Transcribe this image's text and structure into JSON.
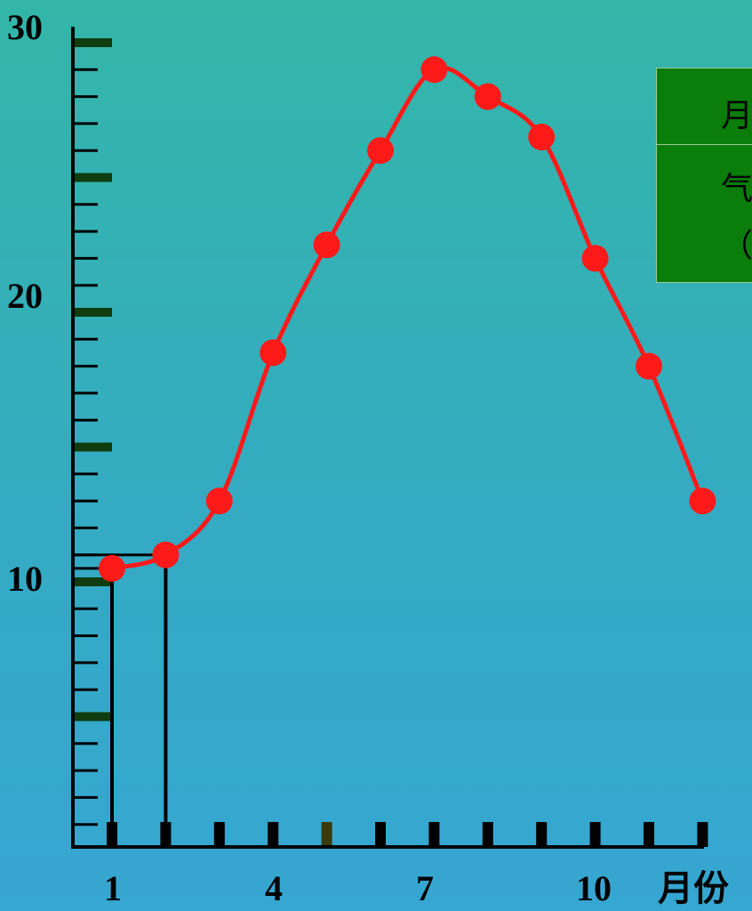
{
  "chart_data": {
    "type": "line",
    "title": "",
    "xlabel": "月份",
    "ylabel": "",
    "x": [
      1,
      2,
      3,
      4,
      5,
      6,
      7,
      8,
      9,
      10,
      11,
      12
    ],
    "series": [
      {
        "values": [
          10.5,
          11.0,
          13.0,
          18.5,
          22.5,
          26.0,
          29.0,
          28.0,
          26.5,
          22.0,
          18.0,
          13.0
        ],
        "color": "#ff1a1a"
      }
    ],
    "xticks": [
      "1",
      "4",
      "7",
      "10"
    ],
    "yticks": [
      "10",
      "20",
      "30"
    ],
    "ylim": [
      0,
      30
    ],
    "xlim": [
      1,
      12
    ],
    "reference_lines": [
      {
        "x": 1,
        "y": 10.5
      },
      {
        "x": 2,
        "y": 11.0
      }
    ],
    "colors": {
      "line": "#ff1a1a",
      "axis": "#000000",
      "major_tick": "#0f3d0f",
      "legend_bg": "#0a7d0a"
    }
  },
  "legend": {
    "line1": "月",
    "line2": "气",
    "line3": "（"
  }
}
